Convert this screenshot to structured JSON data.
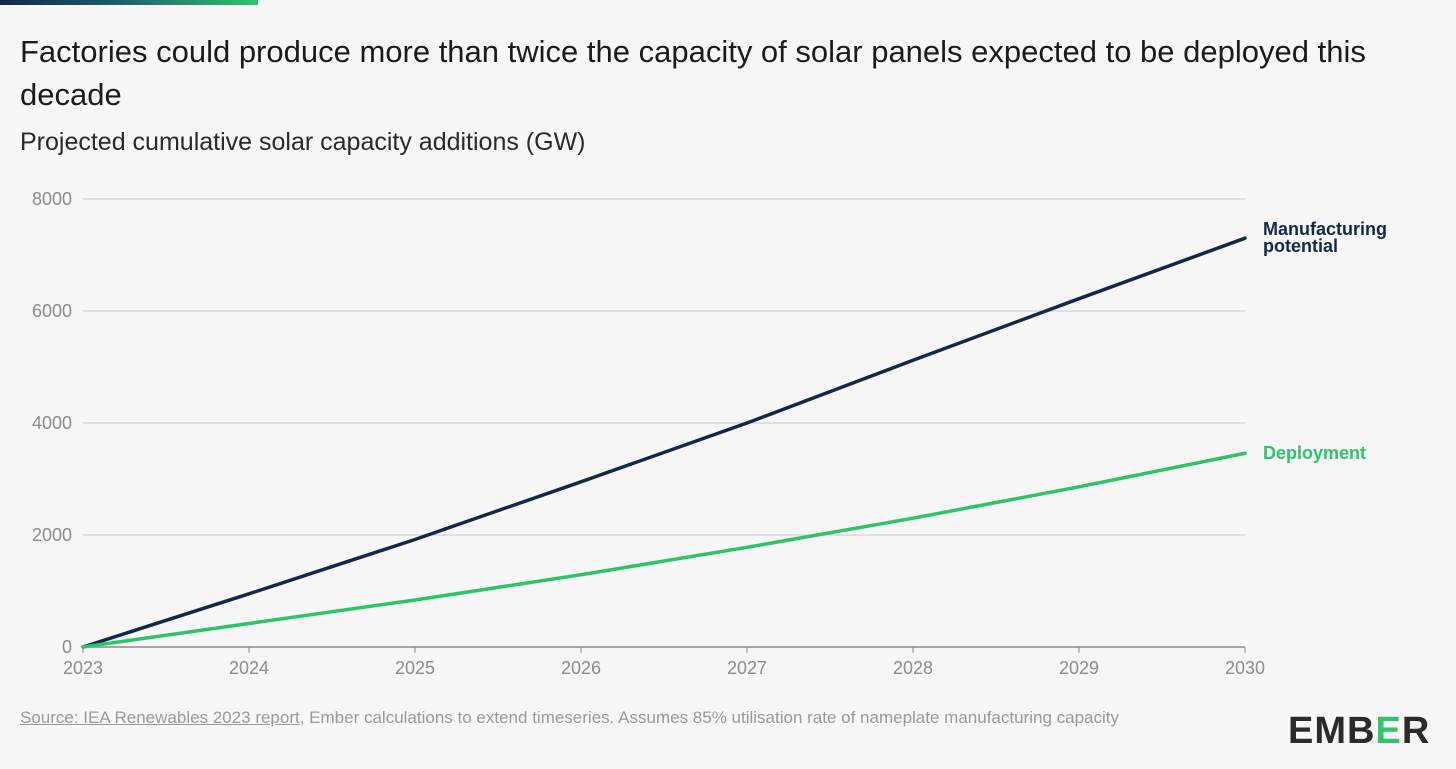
{
  "title": "Factories could produce more than twice the capacity of solar panels expected to be deployed this decade",
  "subtitle": "Projected cumulative solar capacity additions (GW)",
  "source": {
    "link_text": "Source: IEA Renewables 2023 report",
    "rest_text": ", Ember calculations to extend timeseries. Assumes 85% utilisation rate of nameplate manufacturing capacity"
  },
  "logo": {
    "before": "EMB",
    "highlight": "E",
    "after": "R",
    "text": "EMBER"
  },
  "colors": {
    "manufacturing": "#13294b",
    "deployment": "#2ec46a",
    "grid": "#c8c8c8",
    "axis": "#8c8c8c"
  },
  "chart_data": {
    "type": "line",
    "x": [
      2023,
      2024,
      2025,
      2026,
      2027,
      2028,
      2029,
      2030
    ],
    "xticks": [
      "2023",
      "2024",
      "2025",
      "2026",
      "2027",
      "2028",
      "2029",
      "2030"
    ],
    "yticks": [
      "0",
      "2000",
      "4000",
      "6000",
      "8000"
    ],
    "ylim": [
      0,
      8000
    ],
    "xlim": [
      2023,
      2030
    ],
    "grid": true,
    "legend": "direct labels at line ends",
    "series": [
      {
        "name": "Manufacturing potential",
        "label_lines": [
          "Manufacturing",
          "potential"
        ],
        "values": [
          0,
          950,
          1920,
          2950,
          4000,
          5120,
          6220,
          7300
        ]
      },
      {
        "name": "Deployment",
        "label_lines": [
          "Deployment"
        ],
        "values": [
          0,
          420,
          840,
          1290,
          1780,
          2300,
          2860,
          3460
        ]
      }
    ]
  }
}
